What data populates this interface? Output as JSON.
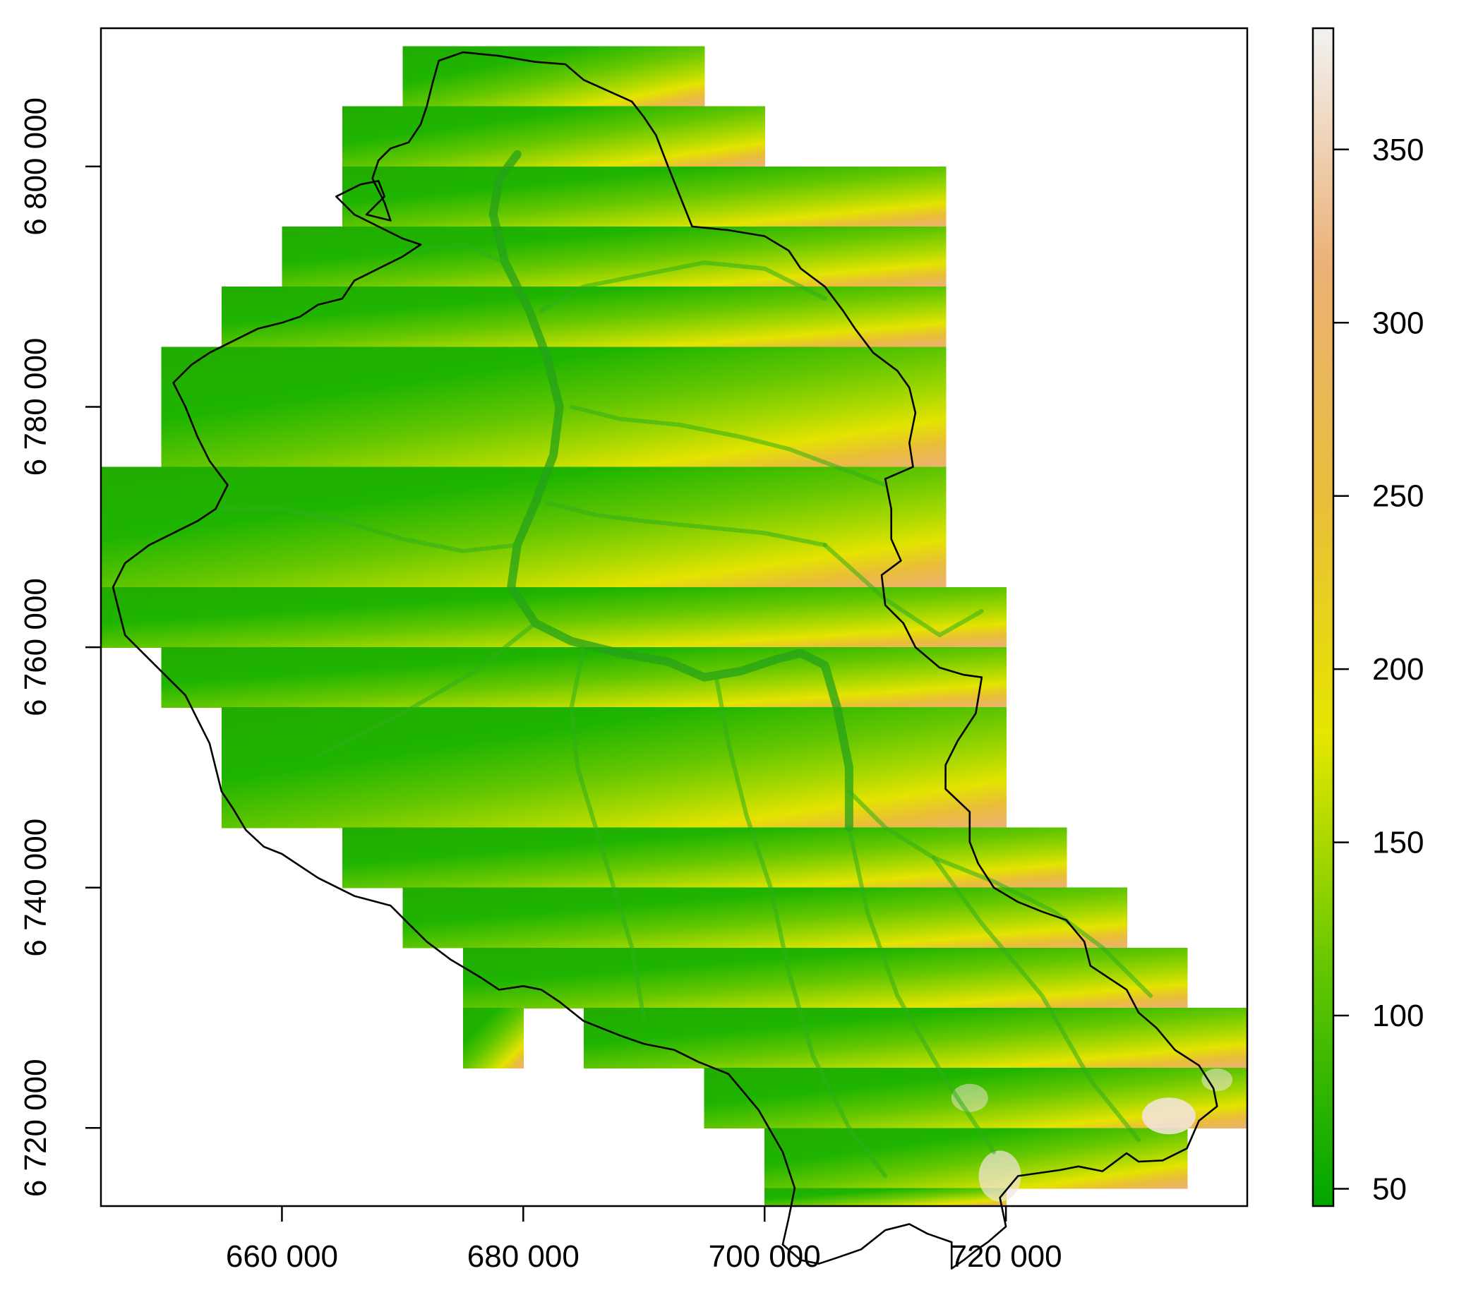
{
  "chart_data": {
    "type": "heatmap",
    "title": "",
    "xlabel": "",
    "ylabel": "",
    "x_ticks": [
      {
        "value": 660000,
        "label": "660 000"
      },
      {
        "value": 680000,
        "label": "680 000"
      },
      {
        "value": 700000,
        "label": "700 000"
      },
      {
        "value": 720000,
        "label": "720 000"
      }
    ],
    "y_ticks": [
      {
        "value": 6720000,
        "label": "6 720 000"
      },
      {
        "value": 6740000,
        "label": "6 740 000"
      },
      {
        "value": 6760000,
        "label": "6 760 000"
      },
      {
        "value": 6780000,
        "label": "6 780 000"
      },
      {
        "value": 6800000,
        "label": "6 800 000"
      }
    ],
    "xlim": [
      645000,
      740000
    ],
    "ylim": [
      6713500,
      6811500
    ],
    "colorbar": {
      "range": [
        45,
        385
      ],
      "ticks": [
        50,
        100,
        150,
        200,
        250,
        300,
        350
      ],
      "colors": [
        "#00a600",
        "#63c600",
        "#e6e600",
        "#e9bd3a",
        "#ecb176",
        "#f2f2f2"
      ]
    },
    "raster_tiles": [
      [
        670000,
        6805000,
        695000,
        6810000
      ],
      [
        665000,
        6800000,
        700000,
        6805000
      ],
      [
        665000,
        6795000,
        715000,
        6800000
      ],
      [
        660000,
        6790000,
        715000,
        6795000
      ],
      [
        655000,
        6785000,
        715000,
        6790000
      ],
      [
        650000,
        6775000,
        715000,
        6785000
      ],
      [
        645000,
        6765000,
        715000,
        6775000
      ],
      [
        645000,
        6760000,
        720000,
        6765000
      ],
      [
        650000,
        6755000,
        720000,
        6760000
      ],
      [
        655000,
        6745000,
        720000,
        6755000
      ],
      [
        665000,
        6740000,
        725000,
        6745000
      ],
      [
        670000,
        6735000,
        730000,
        6740000
      ],
      [
        675000,
        6730000,
        735000,
        6735000
      ],
      [
        675000,
        6725000,
        680000,
        6730000
      ],
      [
        685000,
        6725000,
        740000,
        6730000
      ],
      [
        695000,
        6720000,
        740000,
        6725000
      ],
      [
        700000,
        6715000,
        735000,
        6720000
      ],
      [
        700000,
        6713500,
        720000,
        6715000
      ]
    ],
    "watershed_boundary": [
      [
        673000,
        6808800
      ],
      [
        675000,
        6809500
      ],
      [
        678000,
        6809200
      ],
      [
        681000,
        6808700
      ],
      [
        683500,
        6808500
      ],
      [
        685000,
        6807200
      ],
      [
        687000,
        6806300
      ],
      [
        689000,
        6805400
      ],
      [
        690000,
        6804100
      ],
      [
        691000,
        6802600
      ],
      [
        692000,
        6800000
      ],
      [
        693000,
        6797500
      ],
      [
        694000,
        6795000
      ],
      [
        697000,
        6794700
      ],
      [
        700000,
        6794200
      ],
      [
        702000,
        6793000
      ],
      [
        703000,
        6791500
      ],
      [
        705000,
        6790000
      ],
      [
        706500,
        6788000
      ],
      [
        707500,
        6786500
      ],
      [
        709000,
        6784500
      ],
      [
        711000,
        6783000
      ],
      [
        712000,
        6781600
      ],
      [
        712500,
        6779500
      ],
      [
        712000,
        6777000
      ],
      [
        712300,
        6775000
      ],
      [
        710000,
        6774000
      ],
      [
        710500,
        6771500
      ],
      [
        710500,
        6769000
      ],
      [
        711300,
        6767200
      ],
      [
        709700,
        6766000
      ],
      [
        710000,
        6763500
      ],
      [
        711500,
        6762000
      ],
      [
        712500,
        6760000
      ],
      [
        714500,
        6758300
      ],
      [
        716500,
        6757700
      ],
      [
        718000,
        6757500
      ],
      [
        717500,
        6754500
      ],
      [
        716000,
        6752200
      ],
      [
        715000,
        6750200
      ],
      [
        715000,
        6748200
      ],
      [
        717000,
        6746300
      ],
      [
        717000,
        6743800
      ],
      [
        717700,
        6742000
      ],
      [
        719000,
        6740000
      ],
      [
        721000,
        6738800
      ],
      [
        723000,
        6738000
      ],
      [
        725000,
        6737300
      ],
      [
        726500,
        6735500
      ],
      [
        727000,
        6733500
      ],
      [
        728500,
        6732500
      ],
      [
        730000,
        6731500
      ],
      [
        731000,
        6729600
      ],
      [
        732500,
        6728300
      ],
      [
        734000,
        6726500
      ],
      [
        736000,
        6725200
      ],
      [
        737200,
        6723300
      ],
      [
        737500,
        6721800
      ],
      [
        736000,
        6720600
      ],
      [
        735000,
        6718300
      ],
      [
        733000,
        6717300
      ],
      [
        731000,
        6717200
      ],
      [
        730000,
        6717900
      ],
      [
        728000,
        6716400
      ],
      [
        726000,
        6716800
      ],
      [
        724500,
        6716500
      ],
      [
        721000,
        6716000
      ],
      [
        719500,
        6714200
      ],
      [
        720000,
        6711800
      ],
      [
        718500,
        6710500
      ],
      [
        717500,
        6709800
      ],
      [
        716500,
        6709000
      ],
      [
        715500,
        6708300
      ],
      [
        715500,
        6710500
      ],
      [
        713500,
        6711200
      ],
      [
        712000,
        6712000
      ],
      [
        710000,
        6711500
      ],
      [
        708000,
        6709900
      ],
      [
        706000,
        6709200
      ],
      [
        704500,
        6708700
      ],
      [
        703000,
        6709000
      ],
      [
        701500,
        6710300
      ],
      [
        702000,
        6712500
      ],
      [
        702500,
        6715000
      ],
      [
        701500,
        6718000
      ],
      [
        699500,
        6721500
      ],
      [
        697000,
        6724500
      ],
      [
        694500,
        6725500
      ],
      [
        692500,
        6726500
      ],
      [
        690000,
        6727000
      ],
      [
        688000,
        6727700
      ],
      [
        685000,
        6728900
      ],
      [
        683000,
        6730500
      ],
      [
        681500,
        6731500
      ],
      [
        680000,
        6731800
      ],
      [
        678000,
        6731500
      ],
      [
        676500,
        6732500
      ],
      [
        674000,
        6734000
      ],
      [
        672000,
        6735500
      ],
      [
        670500,
        6737000
      ],
      [
        669000,
        6738500
      ],
      [
        666000,
        6739300
      ],
      [
        663000,
        6740800
      ],
      [
        660000,
        6742800
      ],
      [
        658500,
        6743400
      ],
      [
        657000,
        6744800
      ],
      [
        656000,
        6746500
      ],
      [
        655000,
        6748000
      ],
      [
        654500,
        6750000
      ],
      [
        654000,
        6752000
      ],
      [
        653000,
        6754000
      ],
      [
        652000,
        6756000
      ],
      [
        650500,
        6757500
      ],
      [
        648500,
        6759500
      ],
      [
        647000,
        6761000
      ],
      [
        646500,
        6763000
      ],
      [
        646000,
        6765000
      ],
      [
        647000,
        6767000
      ],
      [
        649000,
        6768500
      ],
      [
        651000,
        6769500
      ],
      [
        653000,
        6770500
      ],
      [
        654500,
        6771500
      ],
      [
        655500,
        6773500
      ],
      [
        654000,
        6775500
      ],
      [
        653000,
        6777500
      ],
      [
        652000,
        6780000
      ],
      [
        651000,
        6782000
      ],
      [
        652500,
        6783500
      ],
      [
        654000,
        6784500
      ],
      [
        656000,
        6785500
      ],
      [
        658000,
        6786500
      ],
      [
        660000,
        6787000
      ],
      [
        661500,
        6787500
      ],
      [
        663000,
        6788500
      ],
      [
        665000,
        6789000
      ],
      [
        666000,
        6790500
      ],
      [
        668000,
        6791500
      ],
      [
        670000,
        6792500
      ],
      [
        671500,
        6793500
      ],
      [
        670000,
        6794000
      ],
      [
        668000,
        6795000
      ],
      [
        666000,
        6796000
      ],
      [
        664500,
        6797500
      ],
      [
        666500,
        6798500
      ],
      [
        668000,
        6798800
      ],
      [
        668500,
        6797500
      ],
      [
        667000,
        6796000
      ],
      [
        669000,
        6795500
      ],
      [
        668500,
        6797000
      ],
      [
        667500,
        6799000
      ],
      [
        668000,
        6800500
      ],
      [
        669000,
        6801500
      ],
      [
        670500,
        6802000
      ],
      [
        671500,
        6803500
      ],
      [
        672000,
        6805000
      ],
      [
        672500,
        6807000
      ]
    ],
    "rivers": [
      [
        [
          679500,
          6801000
        ],
        [
          678000,
          6799000
        ],
        [
          677500,
          6796000
        ],
        [
          678500,
          6792000
        ],
        [
          680500,
          6788000
        ],
        [
          682000,
          6784000
        ],
        [
          683000,
          6780000
        ],
        [
          682500,
          6776000
        ],
        [
          681000,
          6772000
        ],
        [
          679500,
          6768500
        ],
        [
          679000,
          6765000
        ],
        [
          681000,
          6762000
        ],
        [
          684000,
          6760500
        ],
        [
          688000,
          6759500
        ],
        [
          692000,
          6758800
        ],
        [
          695000,
          6757500
        ],
        [
          698000,
          6758000
        ],
        [
          701000,
          6759000
        ],
        [
          703000,
          6759500
        ],
        [
          705000,
          6758500
        ],
        [
          706000,
          6755000
        ],
        [
          707000,
          6750000
        ],
        [
          707000,
          6745000
        ]
      ],
      [
        [
          707000,
          6748000
        ],
        [
          710000,
          6745000
        ],
        [
          714000,
          6742500
        ],
        [
          719000,
          6740500
        ],
        [
          724000,
          6738000
        ],
        [
          728000,
          6735000
        ],
        [
          732000,
          6731000
        ]
      ],
      [
        [
          684000,
          6780000
        ],
        [
          688000,
          6779000
        ],
        [
          693000,
          6778500
        ],
        [
          698000,
          6777500
        ],
        [
          702000,
          6776500
        ],
        [
          706000,
          6775000
        ],
        [
          710000,
          6773500
        ]
      ],
      [
        [
          682000,
          6772000
        ],
        [
          686000,
          6771000
        ],
        [
          690000,
          6770500
        ],
        [
          695000,
          6770000
        ],
        [
          700000,
          6769500
        ],
        [
          705000,
          6768500
        ]
      ],
      [
        [
          681500,
          6788000
        ],
        [
          685000,
          6790000
        ],
        [
          690000,
          6791000
        ],
        [
          695000,
          6792000
        ],
        [
          700000,
          6791500
        ],
        [
          705000,
          6789000
        ]
      ],
      [
        [
          678500,
          6792000
        ],
        [
          675000,
          6793500
        ],
        [
          671000,
          6793000
        ]
      ],
      [
        [
          679500,
          6768500
        ],
        [
          675000,
          6768000
        ],
        [
          670000,
          6769000
        ],
        [
          665000,
          6770500
        ],
        [
          660000,
          6771500
        ],
        [
          655000,
          6771500
        ]
      ],
      [
        [
          685000,
          6760000
        ],
        [
          684000,
          6755000
        ],
        [
          684500,
          6750000
        ],
        [
          686000,
          6745000
        ],
        [
          687500,
          6740000
        ],
        [
          689000,
          6735000
        ],
        [
          690000,
          6729000
        ]
      ],
      [
        [
          696000,
          6757500
        ],
        [
          697000,
          6752000
        ],
        [
          698500,
          6746000
        ],
        [
          700500,
          6740000
        ],
        [
          702000,
          6733000
        ],
        [
          704000,
          6726000
        ],
        [
          707000,
          6720000
        ],
        [
          710000,
          6716000
        ]
      ],
      [
        [
          707000,
          6745000
        ],
        [
          708500,
          6738000
        ],
        [
          711000,
          6731000
        ],
        [
          715000,
          6724000
        ],
        [
          719000,
          6718000
        ]
      ],
      [
        [
          681000,
          6762000
        ],
        [
          676000,
          6758000
        ],
        [
          670000,
          6754500
        ],
        [
          663000,
          6751000
        ]
      ],
      [
        [
          714000,
          6742500
        ],
        [
          718000,
          6737000
        ],
        [
          723000,
          6731000
        ],
        [
          727000,
          6724000
        ],
        [
          731000,
          6719000
        ]
      ],
      [
        [
          705000,
          6768500
        ],
        [
          710000,
          6764000
        ],
        [
          714500,
          6761000
        ],
        [
          718000,
          6763000
        ]
      ]
    ]
  }
}
